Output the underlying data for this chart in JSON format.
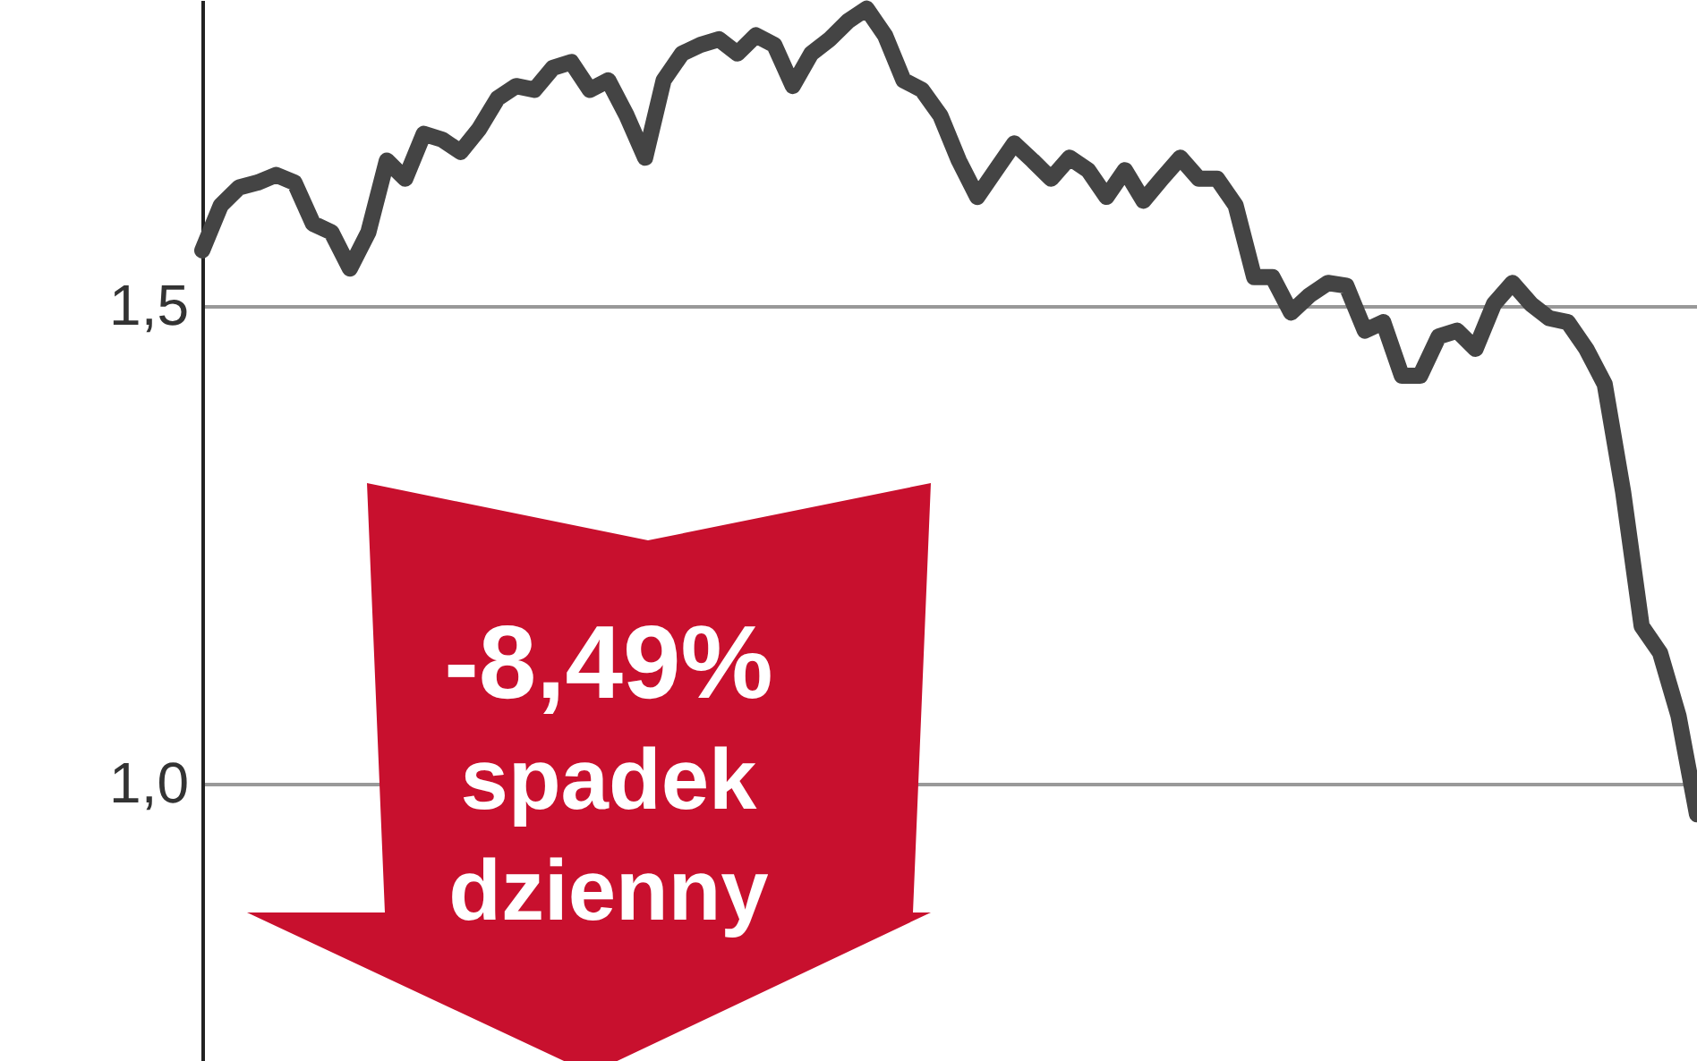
{
  "chart_data": {
    "type": "line",
    "categories": [
      null,
      null,
      null,
      null,
      null,
      null,
      null,
      null,
      null,
      null,
      null,
      null,
      null,
      null,
      null,
      null,
      null,
      null,
      null,
      null,
      null,
      null,
      null,
      null,
      null,
      null,
      null,
      null,
      null,
      null,
      null,
      null,
      null,
      null,
      null,
      null,
      null,
      null,
      null,
      null,
      null,
      null,
      null,
      null,
      null,
      null,
      null,
      null,
      null,
      null,
      null,
      null,
      null,
      null,
      null,
      null,
      null,
      null,
      null,
      null,
      null,
      null,
      null,
      null,
      null,
      null,
      null,
      null,
      null,
      null,
      null,
      null,
      null,
      null,
      null,
      null,
      null,
      null,
      null,
      null,
      null,
      null
    ],
    "series": [
      {
        "color": "#444444",
        "values": [
          1.558,
          1.605,
          1.624,
          1.629,
          1.637,
          1.629,
          1.586,
          1.577,
          1.539,
          1.577,
          1.652,
          1.633,
          1.68,
          1.674,
          1.661,
          1.685,
          1.717,
          1.73,
          1.726,
          1.749,
          1.755,
          1.726,
          1.736,
          1.699,
          1.655,
          1.736,
          1.764,
          1.773,
          1.779,
          1.764,
          1.783,
          1.773,
          1.73,
          1.764,
          1.779,
          1.798,
          1.811,
          1.783,
          1.736,
          1.726,
          1.699,
          1.652,
          1.614,
          1.642,
          1.67,
          1.652,
          1.633,
          1.655,
          1.642,
          1.614,
          1.642,
          1.61,
          1.633,
          1.655,
          1.633,
          1.633,
          1.605,
          1.53,
          1.53,
          1.493,
          1.511,
          1.524,
          1.521,
          1.474,
          1.483,
          1.427,
          1.427,
          1.468,
          1.474,
          1.455,
          1.502,
          1.524,
          1.502,
          1.487,
          1.483,
          1.455,
          1.418,
          1.305,
          1.165,
          1.137,
          1.071,
          0.968
        ]
      }
    ],
    "ylim": [
      0.71,
      1.82
    ],
    "yticks": [
      {
        "value": 1.0,
        "label": "1,0"
      },
      {
        "value": 1.5,
        "label": "1,5"
      }
    ],
    "grid": "y",
    "tick_labels": "y",
    "annotations": [
      "-8,49%",
      "spadek dzienny"
    ]
  }
}
